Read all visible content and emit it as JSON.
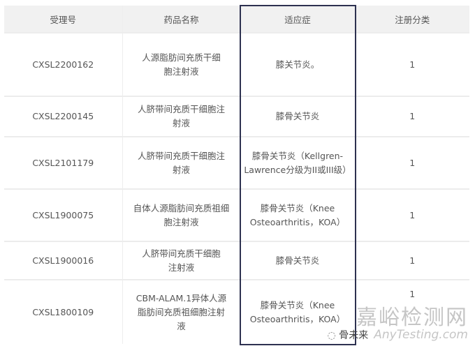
{
  "table": {
    "headers": [
      "受理号",
      "药品名称",
      "适应症",
      "注册分类"
    ],
    "rows": [
      {
        "id": "CXSL2200162",
        "name": "人源脂肪间充质干细胞注射液",
        "indication": "膝关节炎。",
        "class": "1"
      },
      {
        "id": "CXSL2200145",
        "name": "人脐带间充质干细胞注射液",
        "indication": "膝骨关节炎",
        "class": "1"
      },
      {
        "id": "CXSL2101179",
        "name": "人脐带间充质干细胞注射液",
        "indication": "膝骨关节炎（Kellgren-Lawrence分级为II或III级）",
        "class": "1"
      },
      {
        "id": "CXSL1900075",
        "name": "自体人源脂肪间充质祖细胞注射液",
        "indication": "膝骨关节炎（Knee Osteoarthritis，KOA）",
        "class": "1"
      },
      {
        "id": "CXSL1900016",
        "name": "人脐带间充质干细胞注射液",
        "indication": "膝骨关节炎",
        "class": "1"
      },
      {
        "id": "CXSL1800109",
        "name": "CBM-ALAM.1异体人源脂肪间充质祖细胞注射液",
        "indication": "膝骨关节炎（Knee Osteoarthritis，KOA）",
        "class": "1"
      }
    ]
  },
  "highlight_color": "#2d3150",
  "watermark": {
    "site": "嘉峪检测网",
    "domain": "AnyTesting.com",
    "account": "骨未来"
  }
}
